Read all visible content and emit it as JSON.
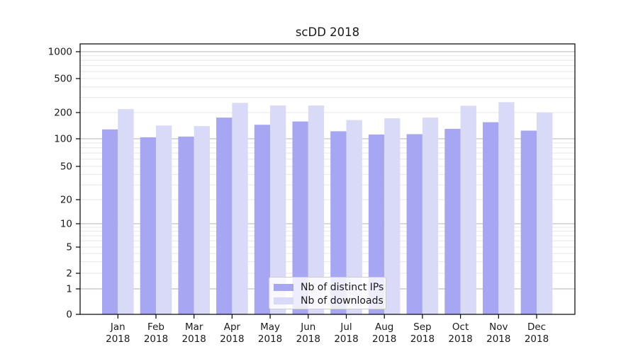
{
  "chart_data": {
    "type": "bar",
    "title": "scDD 2018",
    "categories": [
      "Jan 2018",
      "Feb 2018",
      "Mar 2018",
      "Apr 2018",
      "May 2018",
      "Jun 2018",
      "Jul 2018",
      "Aug 2018",
      "Sep 2018",
      "Oct 2018",
      "Nov 2018",
      "Dec 2018"
    ],
    "series": [
      {
        "name": "Nb of distinct IPs",
        "color": "#a6a6f2",
        "values": [
          128,
          104,
          106,
          175,
          145,
          158,
          122,
          112,
          113,
          130,
          155,
          124
        ]
      },
      {
        "name": "Nb of downloads",
        "color": "#d9d9f8",
        "values": [
          220,
          142,
          140,
          260,
          242,
          242,
          164,
          172,
          175,
          240,
          265,
          200
        ]
      }
    ],
    "yscale": "log-like (linear below 1)",
    "y_ticks": [
      0,
      1,
      2,
      5,
      10,
      20,
      50,
      100,
      200,
      500,
      1000
    ],
    "ylim": [
      0,
      1230
    ],
    "grid": true,
    "legend_position": "lower center",
    "colors": {
      "major_grid": "#b3b3b3",
      "minor_grid": "#e7e7e7",
      "spine": "#000000",
      "text": "#1a1a1a"
    }
  }
}
